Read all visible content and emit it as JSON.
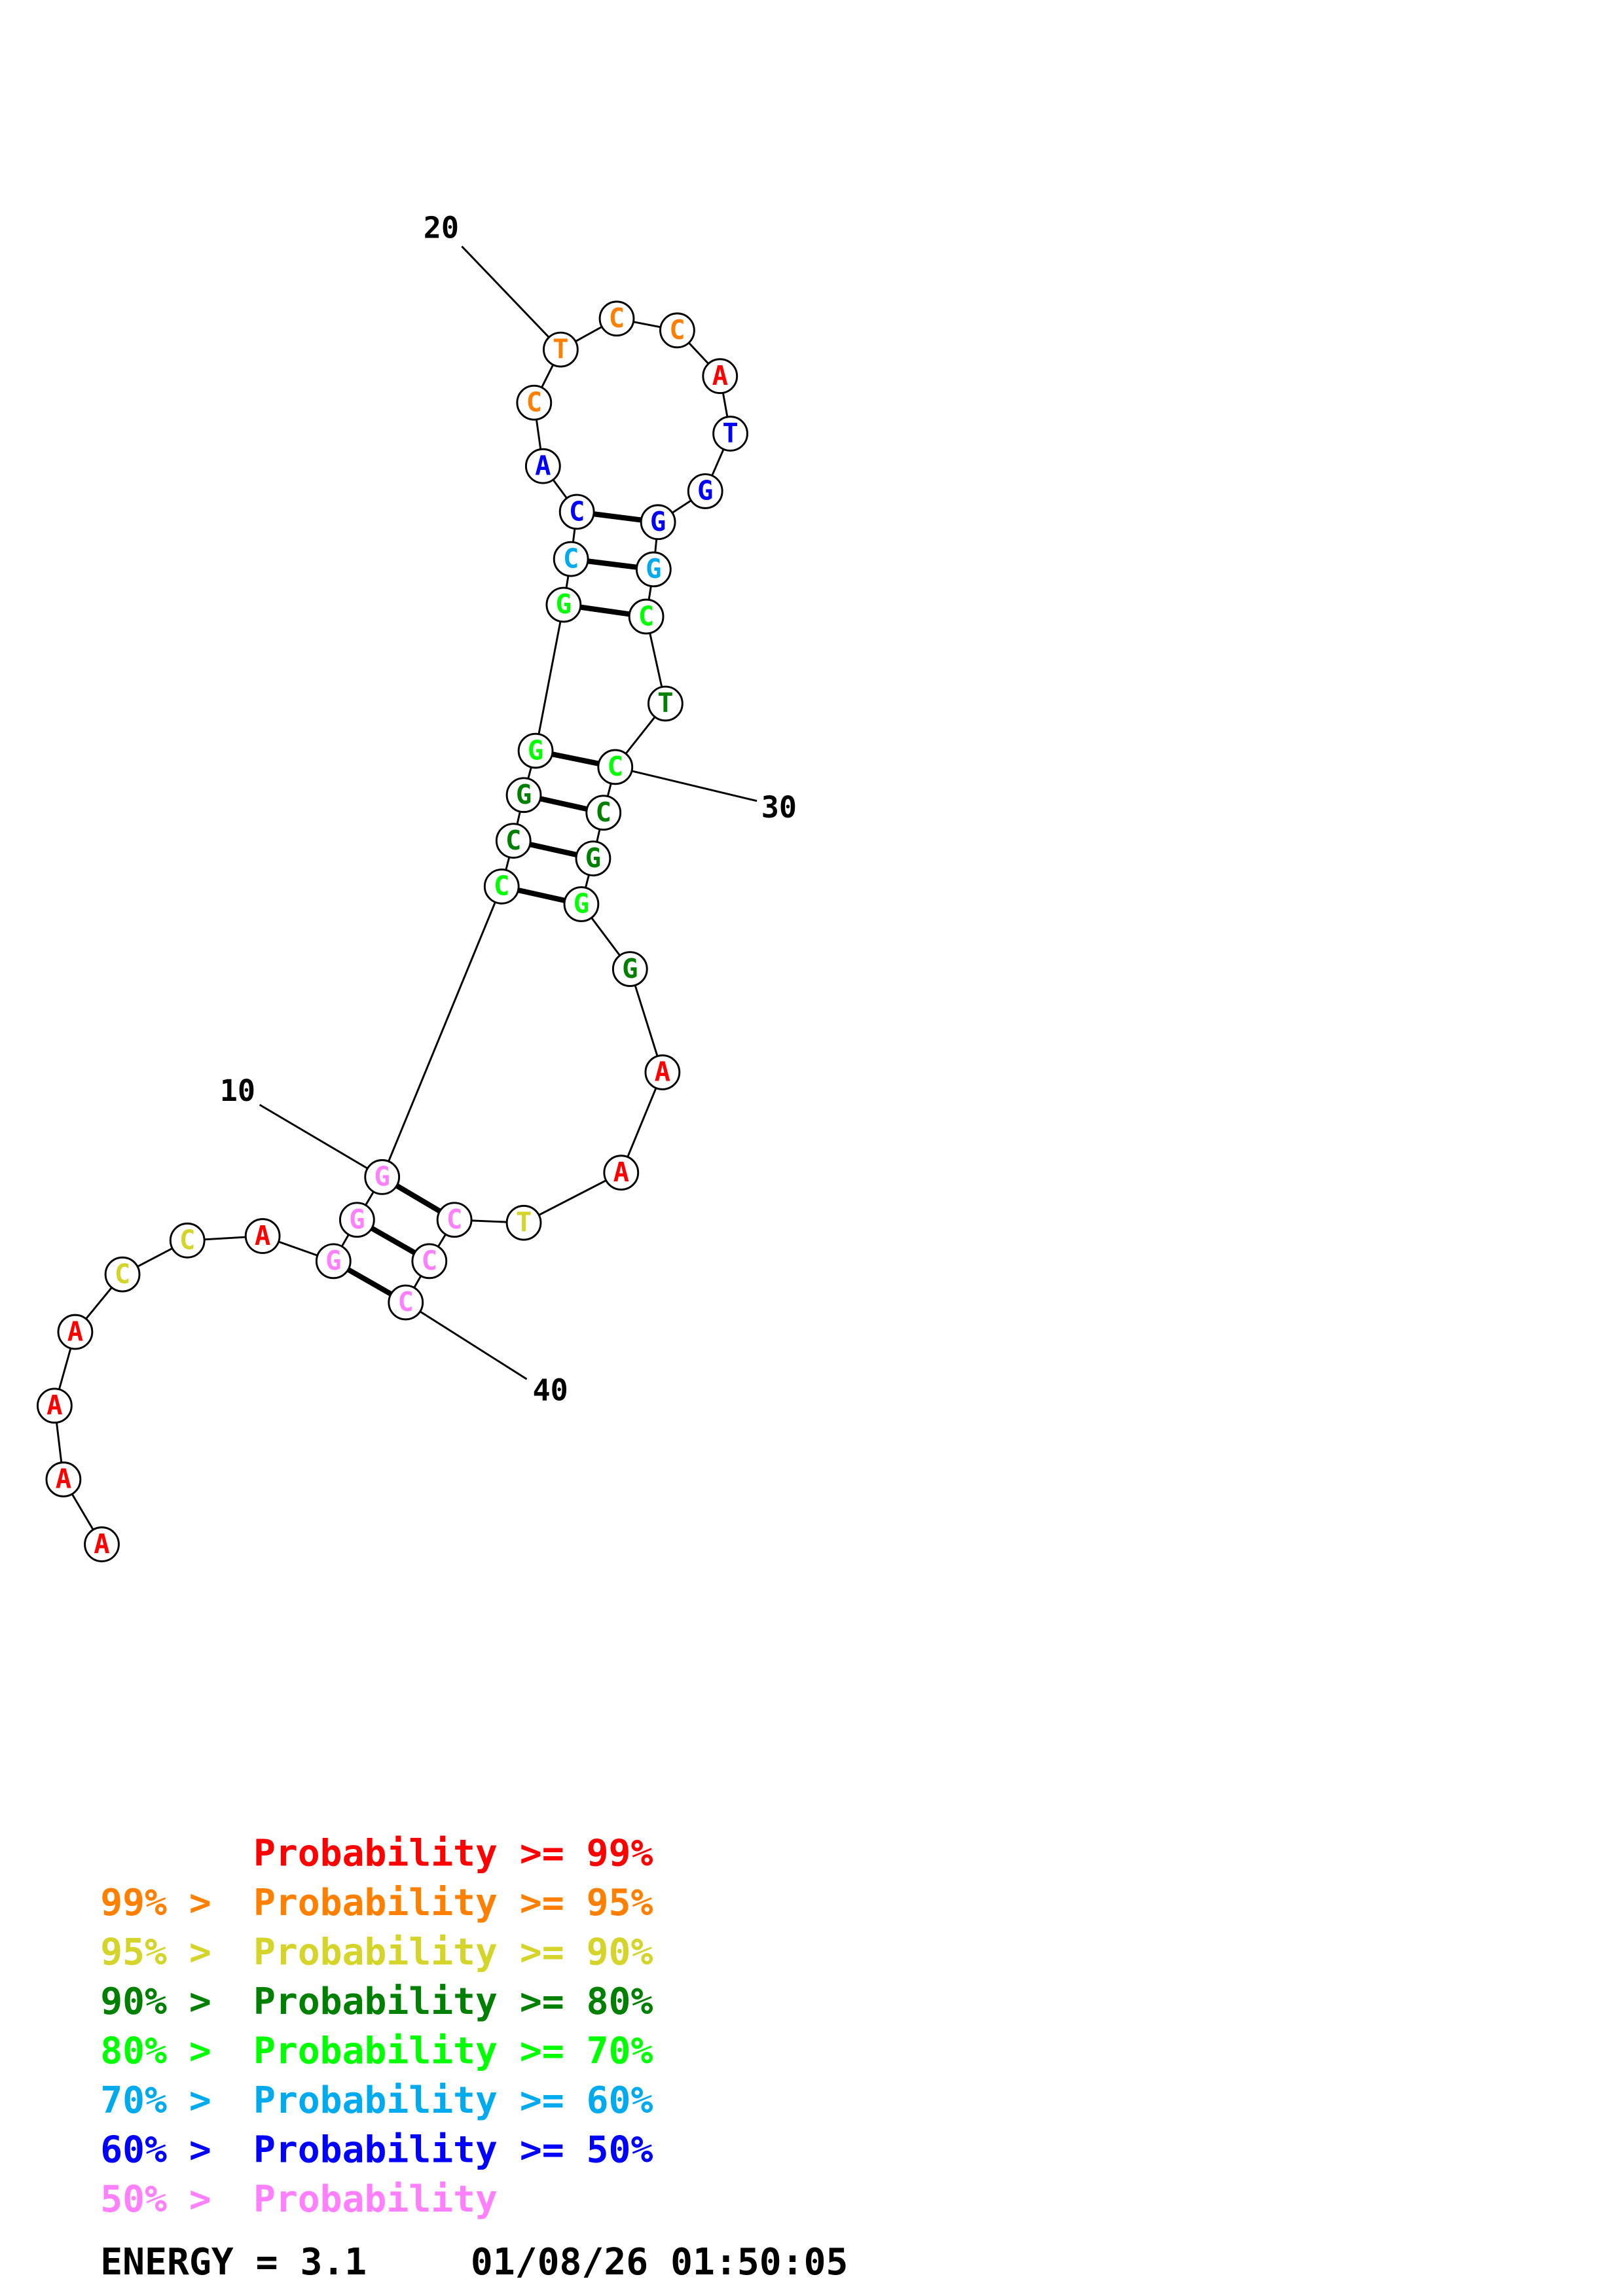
{
  "colors": {
    "p99": "#ff0000",
    "p95": "#ff8000",
    "p90": "#d4d42a",
    "p80": "#008000",
    "p70": "#00ff00",
    "p60": "#00aaee",
    "p50": "#0000ff",
    "p0": "#ff80ff"
  },
  "structure": {
    "nucleotides": [
      {
        "i": 1,
        "base": "A",
        "prob": "p99"
      },
      {
        "i": 2,
        "base": "A",
        "prob": "p99"
      },
      {
        "i": 3,
        "base": "A",
        "prob": "p99"
      },
      {
        "i": 4,
        "base": "A",
        "prob": "p99"
      },
      {
        "i": 5,
        "base": "C",
        "prob": "p90"
      },
      {
        "i": 6,
        "base": "C",
        "prob": "p90"
      },
      {
        "i": 7,
        "base": "A",
        "prob": "p99"
      },
      {
        "i": 8,
        "base": "G",
        "prob": "p0"
      },
      {
        "i": 9,
        "base": "G",
        "prob": "p0"
      },
      {
        "i": 10,
        "base": "G",
        "prob": "p0"
      },
      {
        "i": 11,
        "base": "C",
        "prob": "p70"
      },
      {
        "i": 12,
        "base": "C",
        "prob": "p80"
      },
      {
        "i": 13,
        "base": "G",
        "prob": "p80"
      },
      {
        "i": 14,
        "base": "G",
        "prob": "p70"
      },
      {
        "i": 15,
        "base": "G",
        "prob": "p70"
      },
      {
        "i": 16,
        "base": "C",
        "prob": "p60"
      },
      {
        "i": 17,
        "base": "C",
        "prob": "p50"
      },
      {
        "i": 18,
        "base": "A",
        "prob": "p50"
      },
      {
        "i": 19,
        "base": "C",
        "prob": "p95"
      },
      {
        "i": 20,
        "base": "T",
        "prob": "p95"
      },
      {
        "i": 21,
        "base": "C",
        "prob": "p95"
      },
      {
        "i": 22,
        "base": "C",
        "prob": "p95"
      },
      {
        "i": 23,
        "base": "A",
        "prob": "p99"
      },
      {
        "i": 24,
        "base": "T",
        "prob": "p50"
      },
      {
        "i": 25,
        "base": "G",
        "prob": "p50"
      },
      {
        "i": 26,
        "base": "G",
        "prob": "p50"
      },
      {
        "i": 27,
        "base": "G",
        "prob": "p60"
      },
      {
        "i": 28,
        "base": "C",
        "prob": "p70"
      },
      {
        "i": 29,
        "base": "T",
        "prob": "p80"
      },
      {
        "i": 30,
        "base": "C",
        "prob": "p70"
      },
      {
        "i": 31,
        "base": "C",
        "prob": "p80"
      },
      {
        "i": 32,
        "base": "G",
        "prob": "p80"
      },
      {
        "i": 33,
        "base": "G",
        "prob": "p70"
      },
      {
        "i": 34,
        "base": "G",
        "prob": "p80"
      },
      {
        "i": 35,
        "base": "A",
        "prob": "p99"
      },
      {
        "i": 36,
        "base": "A",
        "prob": "p99"
      },
      {
        "i": 37,
        "base": "T",
        "prob": "p90"
      },
      {
        "i": 38,
        "base": "C",
        "prob": "p0"
      },
      {
        "i": 39,
        "base": "C",
        "prob": "p0"
      },
      {
        "i": 40,
        "base": "C",
        "prob": "p0"
      }
    ],
    "pairs": [
      [
        8,
        40
      ],
      [
        9,
        39
      ],
      [
        10,
        38
      ],
      [
        11,
        33
      ],
      [
        12,
        32
      ],
      [
        13,
        31
      ],
      [
        14,
        30
      ],
      [
        15,
        28
      ],
      [
        16,
        27
      ],
      [
        17,
        26
      ]
    ],
    "position_labels": [
      "10",
      "20",
      "30",
      "40"
    ]
  },
  "legend": {
    "lines": [
      {
        "prefix": "",
        "text": "Probability >= 99%",
        "prob": "p99"
      },
      {
        "prefix": "99% > ",
        "text": "Probability >= 95%",
        "prob": "p95"
      },
      {
        "prefix": "95% > ",
        "text": "Probability >= 90%",
        "prob": "p90"
      },
      {
        "prefix": "90% > ",
        "text": "Probability >= 80%",
        "prob": "p80"
      },
      {
        "prefix": "80% > ",
        "text": "Probability >= 70%",
        "prob": "p70"
      },
      {
        "prefix": "70% > ",
        "text": "Probability >= 60%",
        "prob": "p60"
      },
      {
        "prefix": "60% > ",
        "text": "Probability >= 50%",
        "prob": "p50"
      },
      {
        "prefix": "50% > ",
        "text": "Probability",
        "prob": "p0"
      }
    ],
    "energy_label": "ENERGY = 3.1",
    "timestamp": "01/08/26 01:50:05"
  }
}
